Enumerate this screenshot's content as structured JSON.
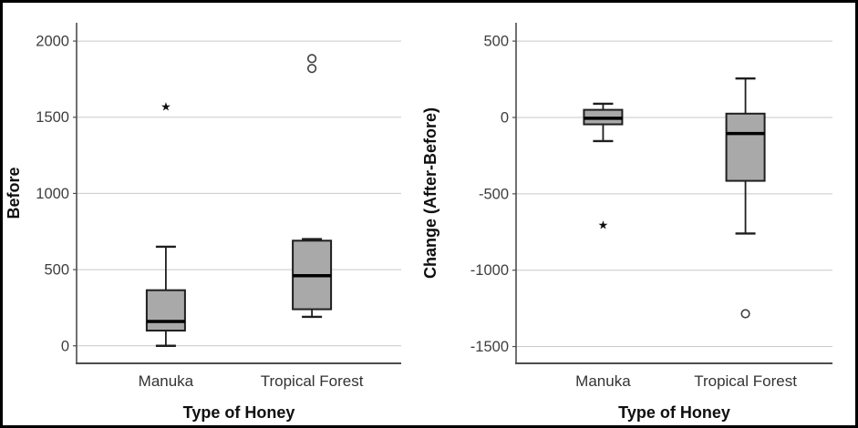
{
  "figure": {
    "background": "#ffffff",
    "border_color": "#000000",
    "box_fill": "#a9a9a9",
    "box_border": "#1f1f1f",
    "median_color": "#000000",
    "gridline_color": "#c9c9c9",
    "axis_color": "#4d4d4d",
    "tick_label_color": "#3e3e3e",
    "category_label_color": "#333333",
    "title_color": "#0f0f0f",
    "outlier_symbol_name": "circle-outlier-marker",
    "extreme_symbol": "★"
  },
  "chart_data": [
    {
      "type": "boxplot",
      "title": "",
      "ylabel": "Before",
      "xlabel": "Type of Honey",
      "categories": [
        "Manuka",
        "Tropical Forest"
      ],
      "yticks": [
        0,
        500,
        1000,
        1500,
        2000
      ],
      "ytick_labels": [
        "0",
        "500",
        "1000",
        "1500",
        "2000"
      ],
      "ylim": [
        -115,
        2120
      ],
      "grid": true,
      "legend": "none",
      "series": [
        {
          "category": "Manuka",
          "whisker_low": 0,
          "q1": 100,
          "median": 160,
          "q3": 365,
          "whisker_high": 650,
          "outliers": [],
          "extremes": [
            1570
          ]
        },
        {
          "category": "Tropical Forest",
          "whisker_low": 190,
          "q1": 240,
          "median": 460,
          "q3": 690,
          "whisker_high": 700,
          "outliers": [
            1885,
            1820
          ],
          "extremes": []
        }
      ]
    },
    {
      "type": "boxplot",
      "title": "",
      "ylabel": "Change (After-Before)",
      "xlabel": "Type of Honey",
      "categories": [
        "Manuka",
        "Tropical Forest"
      ],
      "yticks": [
        500,
        0,
        -500,
        -1000,
        -1500
      ],
      "ytick_labels": [
        "500",
        "0",
        "-500",
        "-1000",
        "-1500"
      ],
      "ylim": [
        -1610,
        620
      ],
      "grid": true,
      "legend": "none",
      "series": [
        {
          "category": "Manuka",
          "whisker_low": -155,
          "q1": -45,
          "median": -5,
          "q3": 50,
          "whisker_high": 90,
          "outliers": [],
          "extremes": [
            -705
          ]
        },
        {
          "category": "Tropical Forest",
          "whisker_low": -760,
          "q1": -415,
          "median": -105,
          "q3": 25,
          "whisker_high": 255,
          "outliers": [
            -1285
          ],
          "extremes": []
        }
      ]
    }
  ]
}
